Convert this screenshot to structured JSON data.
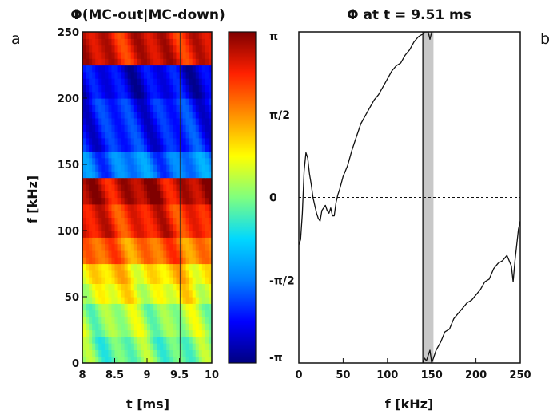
{
  "chart_data": [
    {
      "type": "heatmap",
      "panel_label": "a",
      "title": "Φ(MC-out|MC-down)",
      "xlabel": "t  [ms]",
      "ylabel": "f [kHz]",
      "xlim": [
        8,
        10
      ],
      "ylim": [
        0,
        250
      ],
      "xticks": [
        "8",
        "8.5",
        "9",
        "9.5",
        "10"
      ],
      "yticks": [
        "0",
        "50",
        "100",
        "150",
        "200",
        "250"
      ],
      "marker_t": 9.51,
      "colorbar": {
        "ticks": [
          "π",
          "π/2",
          "0",
          "-π/2",
          "-π"
        ],
        "colors": [
          "#000080",
          "#0000ff",
          "#0080ff",
          "#00d8ff",
          "#7fff7f",
          "#ffff00",
          "#ff9000",
          "#ff2000",
          "#800000"
        ]
      },
      "band_values": [
        {
          "f": [
            0,
            20
          ],
          "phase": -0.1
        },
        {
          "f": [
            20,
            45
          ],
          "phase": 0.2
        },
        {
          "f": [
            45,
            60
          ],
          "phase": 0.7
        },
        {
          "f": [
            60,
            75
          ],
          "phase": 1.0
        },
        {
          "f": [
            75,
            95
          ],
          "phase": 1.8
        },
        {
          "f": [
            95,
            120
          ],
          "phase": 2.4
        },
        {
          "f": [
            120,
            140
          ],
          "phase": 2.8
        },
        {
          "f": [
            140,
            160
          ],
          "phase": -1.6
        },
        {
          "f": [
            160,
            200
          ],
          "phase": -2.2
        },
        {
          "f": [
            200,
            225
          ],
          "phase": -2.5
        },
        {
          "f": [
            225,
            250
          ],
          "phase": 2.6
        }
      ]
    },
    {
      "type": "line",
      "panel_label": "b",
      "title": "Φ at t = 9.51 ms",
      "xlabel": "f [kHz]",
      "xlim": [
        0,
        250
      ],
      "ylim": [
        -3.14159,
        3.14159
      ],
      "xticks": [
        "0",
        "50",
        "100",
        "150",
        "200",
        "250"
      ],
      "yticks": [
        "π",
        "π/2",
        "0",
        "-π/2",
        "-π"
      ],
      "zero_line": true,
      "shaded_band_kHz": [
        140,
        152
      ],
      "series": [
        {
          "x": [
            0,
            2,
            4,
            6,
            8,
            10,
            12,
            14,
            16,
            18,
            20,
            22,
            24,
            26,
            28,
            30,
            32,
            34,
            36,
            38,
            40,
            42,
            44,
            46,
            50,
            55,
            60,
            65,
            70,
            75,
            80,
            85,
            90,
            95,
            100,
            105,
            110,
            115,
            120,
            125,
            130,
            135,
            140,
            142,
            144,
            146,
            148,
            150
          ],
          "y": [
            -0.9,
            -0.8,
            -0.3,
            0.5,
            0.85,
            0.75,
            0.45,
            0.25,
            0.0,
            -0.15,
            -0.3,
            -0.4,
            -0.45,
            -0.25,
            -0.2,
            -0.15,
            -0.25,
            -0.3,
            -0.2,
            -0.35,
            -0.35,
            -0.1,
            0.05,
            0.15,
            0.4,
            0.6,
            0.9,
            1.15,
            1.4,
            1.55,
            1.7,
            1.85,
            1.95,
            2.1,
            2.25,
            2.4,
            2.5,
            2.55,
            2.7,
            2.8,
            2.95,
            3.05,
            3.1,
            3.14,
            3.14,
            3.14,
            3.0,
            3.14
          ]
        },
        {
          "x": [
            140,
            142,
            144,
            146,
            148,
            150,
            152,
            155,
            160,
            165,
            170,
            175,
            180,
            185,
            190,
            195,
            200,
            205,
            210,
            215,
            220,
            225,
            230,
            235,
            240,
            242,
            244,
            246,
            248,
            250
          ],
          "y": [
            -3.14,
            -3.05,
            -3.1,
            -3.0,
            -2.9,
            -3.14,
            -3.05,
            -2.9,
            -2.75,
            -2.55,
            -2.5,
            -2.3,
            -2.2,
            -2.1,
            -2.0,
            -1.95,
            -1.85,
            -1.75,
            -1.6,
            -1.55,
            -1.35,
            -1.25,
            -1.2,
            -1.1,
            -1.3,
            -1.6,
            -1.2,
            -0.9,
            -0.6,
            -0.45
          ]
        }
      ]
    }
  ]
}
